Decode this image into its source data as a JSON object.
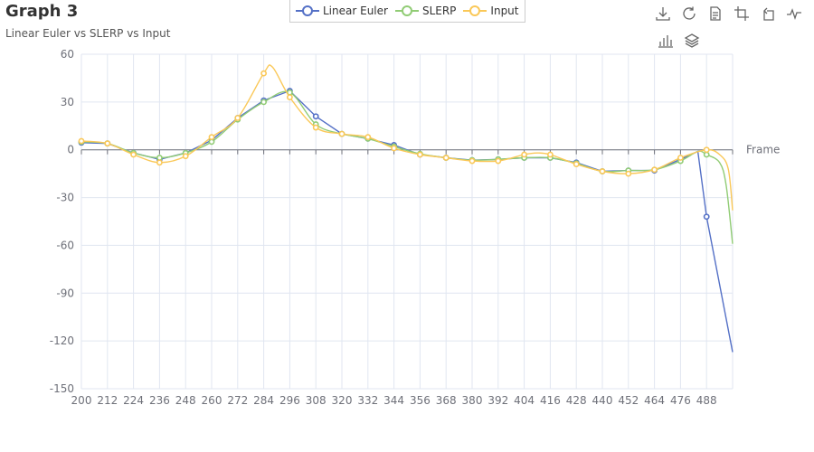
{
  "chart_data": {
    "type": "line",
    "title": "Graph 3",
    "subtitle": "Linear Euler vs SLERP vs Input",
    "xlabel": "Frame",
    "ylabel": "",
    "xlim": [
      200,
      500
    ],
    "ylim": [
      -150,
      60
    ],
    "x_ticks": [
      200,
      212,
      224,
      236,
      248,
      260,
      272,
      284,
      296,
      308,
      320,
      332,
      344,
      356,
      368,
      380,
      392,
      404,
      416,
      428,
      440,
      452,
      464,
      476,
      488
    ],
    "y_ticks": [
      60,
      30,
      0,
      -30,
      -60,
      -90,
      -120,
      -150
    ],
    "legend_position": "top-center",
    "grid": true,
    "series": [
      {
        "name": "Linear Euler",
        "color": "#5470c6",
        "smooth": false,
        "points": [
          [
            200,
            4.5
          ],
          [
            212,
            4
          ],
          [
            224,
            -2
          ],
          [
            236,
            -6
          ],
          [
            248,
            -2
          ],
          [
            260,
            6
          ],
          [
            272,
            20
          ],
          [
            284,
            31
          ],
          [
            296,
            37
          ],
          [
            308,
            21
          ],
          [
            320,
            10
          ],
          [
            332,
            7
          ],
          [
            344,
            3
          ],
          [
            356,
            -3
          ],
          [
            368,
            -5
          ],
          [
            380,
            -6.5
          ],
          [
            392,
            -6
          ],
          [
            404,
            -5
          ],
          [
            416,
            -5
          ],
          [
            428,
            -8
          ],
          [
            440,
            -13.5
          ],
          [
            452,
            -13
          ],
          [
            464,
            -13
          ],
          [
            476,
            -6
          ],
          [
            484,
            -1
          ],
          [
            488,
            -42
          ],
          [
            500,
            -127
          ]
        ],
        "markers": [
          [
            200,
            4.5
          ],
          [
            212,
            4
          ],
          [
            224,
            -2
          ],
          [
            236,
            -6
          ],
          [
            248,
            -2
          ],
          [
            260,
            6
          ],
          [
            272,
            20
          ],
          [
            284,
            31
          ],
          [
            296,
            37
          ],
          [
            308,
            21
          ],
          [
            320,
            10
          ],
          [
            332,
            7
          ],
          [
            344,
            3
          ],
          [
            356,
            -3
          ],
          [
            368,
            -5
          ],
          [
            380,
            -6.5
          ],
          [
            392,
            -6
          ],
          [
            404,
            -5
          ],
          [
            416,
            -5
          ],
          [
            428,
            -8
          ],
          [
            440,
            -13.5
          ],
          [
            452,
            -13
          ],
          [
            464,
            -13
          ],
          [
            476,
            -6
          ],
          [
            488,
            -42
          ]
        ]
      },
      {
        "name": "SLERP",
        "color": "#91cc75",
        "smooth": true,
        "points": [
          [
            200,
            5
          ],
          [
            212,
            4
          ],
          [
            224,
            -2
          ],
          [
            236,
            -5
          ],
          [
            248,
            -2
          ],
          [
            260,
            5
          ],
          [
            272,
            19
          ],
          [
            284,
            30
          ],
          [
            296,
            36
          ],
          [
            308,
            16
          ],
          [
            320,
            10
          ],
          [
            332,
            7
          ],
          [
            344,
            2
          ],
          [
            356,
            -2.5
          ],
          [
            368,
            -5
          ],
          [
            380,
            -6.5
          ],
          [
            392,
            -6
          ],
          [
            404,
            -5
          ],
          [
            416,
            -5
          ],
          [
            428,
            -8.5
          ],
          [
            440,
            -13.5
          ],
          [
            452,
            -13
          ],
          [
            464,
            -12.5
          ],
          [
            476,
            -7
          ],
          [
            484,
            -1
          ],
          [
            488,
            -3
          ],
          [
            494,
            -8
          ],
          [
            497,
            -22
          ],
          [
            500,
            -59
          ]
        ],
        "markers": [
          [
            200,
            5
          ],
          [
            212,
            4
          ],
          [
            224,
            -2
          ],
          [
            236,
            -5
          ],
          [
            248,
            -2
          ],
          [
            260,
            5
          ],
          [
            272,
            19
          ],
          [
            284,
            30
          ],
          [
            296,
            36
          ],
          [
            308,
            16
          ],
          [
            320,
            10
          ],
          [
            332,
            7
          ],
          [
            344,
            2
          ],
          [
            356,
            -2.5
          ],
          [
            368,
            -5
          ],
          [
            380,
            -6.5
          ],
          [
            392,
            -6
          ],
          [
            404,
            -5
          ],
          [
            416,
            -5
          ],
          [
            428,
            -8.5
          ],
          [
            440,
            -13.5
          ],
          [
            452,
            -13
          ],
          [
            464,
            -12.5
          ],
          [
            476,
            -7
          ],
          [
            488,
            -3
          ]
        ]
      },
      {
        "name": "Input",
        "color": "#fac858",
        "smooth": true,
        "points": [
          [
            200,
            5.5
          ],
          [
            212,
            4
          ],
          [
            224,
            -3
          ],
          [
            236,
            -8
          ],
          [
            248,
            -4
          ],
          [
            260,
            8
          ],
          [
            272,
            20
          ],
          [
            284,
            48
          ],
          [
            288,
            52
          ],
          [
            296,
            33
          ],
          [
            308,
            14
          ],
          [
            320,
            10
          ],
          [
            332,
            8
          ],
          [
            344,
            1
          ],
          [
            356,
            -3
          ],
          [
            368,
            -5
          ],
          [
            380,
            -7
          ],
          [
            392,
            -7
          ],
          [
            404,
            -3
          ],
          [
            410,
            -2
          ],
          [
            416,
            -3
          ],
          [
            428,
            -9
          ],
          [
            440,
            -13.5
          ],
          [
            452,
            -15
          ],
          [
            464,
            -12.5
          ],
          [
            476,
            -5
          ],
          [
            488,
            0
          ],
          [
            494,
            -3
          ],
          [
            498,
            -12
          ],
          [
            500,
            -38
          ]
        ],
        "markers": [
          [
            200,
            5.5
          ],
          [
            212,
            4
          ],
          [
            224,
            -3
          ],
          [
            236,
            -8
          ],
          [
            248,
            -4
          ],
          [
            260,
            8
          ],
          [
            272,
            20
          ],
          [
            284,
            48
          ],
          [
            296,
            33
          ],
          [
            308,
            14
          ],
          [
            320,
            10
          ],
          [
            332,
            8
          ],
          [
            344,
            1
          ],
          [
            356,
            -3
          ],
          [
            368,
            -5
          ],
          [
            380,
            -7
          ],
          [
            392,
            -7
          ],
          [
            404,
            -3
          ],
          [
            416,
            -3
          ],
          [
            428,
            -9
          ],
          [
            440,
            -13.5
          ],
          [
            452,
            -15
          ],
          [
            464,
            -12.5
          ],
          [
            476,
            -5
          ],
          [
            488,
            0
          ]
        ]
      }
    ]
  },
  "toolbox": {
    "tools": [
      "download-icon",
      "refresh-icon",
      "data-view-icon",
      "zoom-select-icon",
      "zoom-reset-icon",
      "line-chart-icon",
      "bar-chart-icon",
      "stack-icon"
    ]
  }
}
